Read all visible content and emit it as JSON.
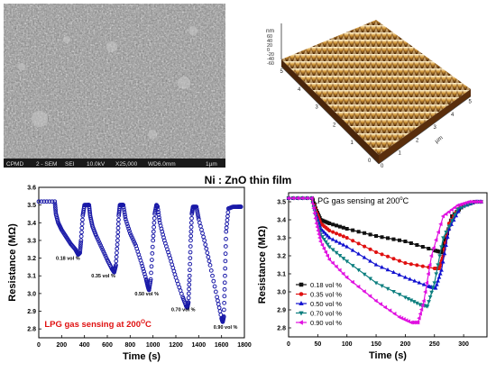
{
  "figure_title": "Ni : ZnO thin film",
  "sem": {
    "info_bar": [
      "CPMD",
      "2 - SEM",
      "SEI",
      "10.0kV",
      "X25,000",
      "WD6.0mm",
      "1µm"
    ]
  },
  "afm": {
    "z_unit": "nm",
    "z_ticks": [
      "60",
      "40",
      "20",
      "0",
      "-20",
      "-40",
      "-60"
    ],
    "x_unit": "µm",
    "x_ticks": [
      "0",
      "1",
      "2",
      "3",
      "4",
      "5"
    ],
    "y_ticks": [
      "0",
      "1",
      "2",
      "3",
      "4",
      "5"
    ],
    "colors": {
      "high": "#fff6d8",
      "mid": "#d49a3a",
      "low": "#3a1c06"
    }
  },
  "chart_data": [
    {
      "type": "line",
      "xlabel": "Time (s)",
      "ylabel": "Resistance (MΩ)",
      "xlim": [
        0,
        1800
      ],
      "ylim": [
        2.75,
        3.6
      ],
      "xticks": [
        0,
        200,
        400,
        600,
        800,
        1000,
        1200,
        1400,
        1600,
        1800
      ],
      "yticks": [
        2.8,
        2.9,
        3.0,
        3.1,
        3.2,
        3.3,
        3.4,
        3.5,
        3.6
      ],
      "annotation": "LPG gas sensing at 200",
      "annotation_superscript": "O",
      "annotation_suffix": "C",
      "color": "#1a1aa8",
      "series": [
        {
          "x": [
            0,
            140,
            150,
            170,
            200,
            240,
            280,
            320,
            345,
            360,
            370,
            385,
            400,
            430,
            440,
            450,
            470,
            500,
            550,
            600,
            640,
            660,
            675,
            690,
            700,
            710,
            730,
            740,
            760,
            800,
            850,
            900,
            940,
            955,
            965,
            980,
            1000,
            1015,
            1030,
            1040,
            1060,
            1100,
            1150,
            1200,
            1260,
            1290,
            1300,
            1310,
            1320,
            1330,
            1340,
            1350,
            1380,
            1400,
            1450,
            1500,
            1560,
            1600,
            1610,
            1620,
            1630,
            1640,
            1660,
            1700,
            1740,
            1760,
            1770
          ],
          "y": [
            3.52,
            3.52,
            3.45,
            3.4,
            3.36,
            3.32,
            3.28,
            3.25,
            3.22,
            3.23,
            3.3,
            3.44,
            3.5,
            3.5,
            3.5,
            3.44,
            3.38,
            3.33,
            3.26,
            3.19,
            3.14,
            3.12,
            3.16,
            3.3,
            3.44,
            3.5,
            3.5,
            3.5,
            3.42,
            3.34,
            3.27,
            3.17,
            3.08,
            3.04,
            3.02,
            3.08,
            3.3,
            3.45,
            3.5,
            3.49,
            3.4,
            3.3,
            3.2,
            3.09,
            2.98,
            2.93,
            2.92,
            2.95,
            3.1,
            3.3,
            3.45,
            3.49,
            3.49,
            3.42,
            3.3,
            3.16,
            2.98,
            2.86,
            2.84,
            2.87,
            3.1,
            3.35,
            3.48,
            3.49,
            3.49,
            3.49,
            3.49
          ]
        }
      ],
      "labels": [
        {
          "text": "0.18 vol %",
          "x": 150,
          "y": 3.19
        },
        {
          "text": "0.35 vol %",
          "x": 460,
          "y": 3.09
        },
        {
          "text": "0.50 vol %",
          "x": 840,
          "y": 2.99
        },
        {
          "text": "0.70 vol %",
          "x": 1160,
          "y": 2.9
        },
        {
          "text": "0.90 vol %",
          "x": 1530,
          "y": 2.8
        }
      ]
    },
    {
      "type": "line",
      "xlabel": "Time (s)",
      "ylabel": "Resistance (MΩ)",
      "xlim": [
        0,
        340
      ],
      "ylim": [
        2.75,
        3.55
      ],
      "xticks": [
        0,
        50,
        100,
        150,
        200,
        250,
        300
      ],
      "yticks": [
        2.8,
        2.9,
        3.0,
        3.1,
        3.2,
        3.3,
        3.4,
        3.5
      ],
      "annotation": "LPG gas sensing at 200",
      "annotation_superscript": "o",
      "annotation_suffix": "C",
      "legend_position": "bottom-left",
      "series": [
        {
          "name": "0.18 vol %",
          "color": "#111111",
          "marker": "square",
          "x": [
            0,
            40,
            48,
            55,
            70,
            100,
            150,
            200,
            250,
            262,
            270,
            280,
            300,
            320,
            330
          ],
          "y": [
            3.52,
            3.52,
            3.45,
            3.4,
            3.38,
            3.35,
            3.31,
            3.28,
            3.23,
            3.22,
            3.3,
            3.42,
            3.48,
            3.5,
            3.5
          ]
        },
        {
          "name": "0.35 vol %",
          "color": "#e01010",
          "marker": "circle",
          "x": [
            0,
            40,
            48,
            55,
            70,
            100,
            150,
            200,
            250,
            258,
            265,
            275,
            295,
            320,
            330
          ],
          "y": [
            3.52,
            3.52,
            3.44,
            3.38,
            3.34,
            3.3,
            3.22,
            3.16,
            3.13,
            3.13,
            3.2,
            3.38,
            3.48,
            3.5,
            3.5
          ]
        },
        {
          "name": "0.50 vol %",
          "color": "#1010d0",
          "marker": "triangle-up",
          "x": [
            0,
            40,
            48,
            55,
            70,
            100,
            150,
            200,
            240,
            252,
            262,
            275,
            295,
            320,
            330
          ],
          "y": [
            3.52,
            3.52,
            3.42,
            3.35,
            3.3,
            3.25,
            3.15,
            3.08,
            3.03,
            3.02,
            3.12,
            3.35,
            3.47,
            3.5,
            3.5
          ]
        },
        {
          "name": "0.70 vol %",
          "color": "#0d7f7f",
          "marker": "triangle-down",
          "x": [
            0,
            40,
            48,
            55,
            70,
            100,
            150,
            200,
            225,
            238,
            250,
            265,
            290,
            320,
            330
          ],
          "y": [
            3.52,
            3.52,
            3.4,
            3.32,
            3.25,
            3.17,
            3.05,
            2.97,
            2.93,
            2.92,
            3.05,
            3.3,
            3.46,
            3.5,
            3.5
          ]
        },
        {
          "name": "0.90 vol %",
          "color": "#e010e0",
          "marker": "triangle-left",
          "x": [
            0,
            40,
            48,
            55,
            70,
            100,
            150,
            190,
            210,
            222,
            232,
            245,
            265,
            290,
            310,
            330
          ],
          "y": [
            3.52,
            3.52,
            3.38,
            3.28,
            3.18,
            3.08,
            2.95,
            2.86,
            2.83,
            2.83,
            2.95,
            3.2,
            3.42,
            3.48,
            3.5,
            3.5
          ]
        }
      ]
    }
  ]
}
